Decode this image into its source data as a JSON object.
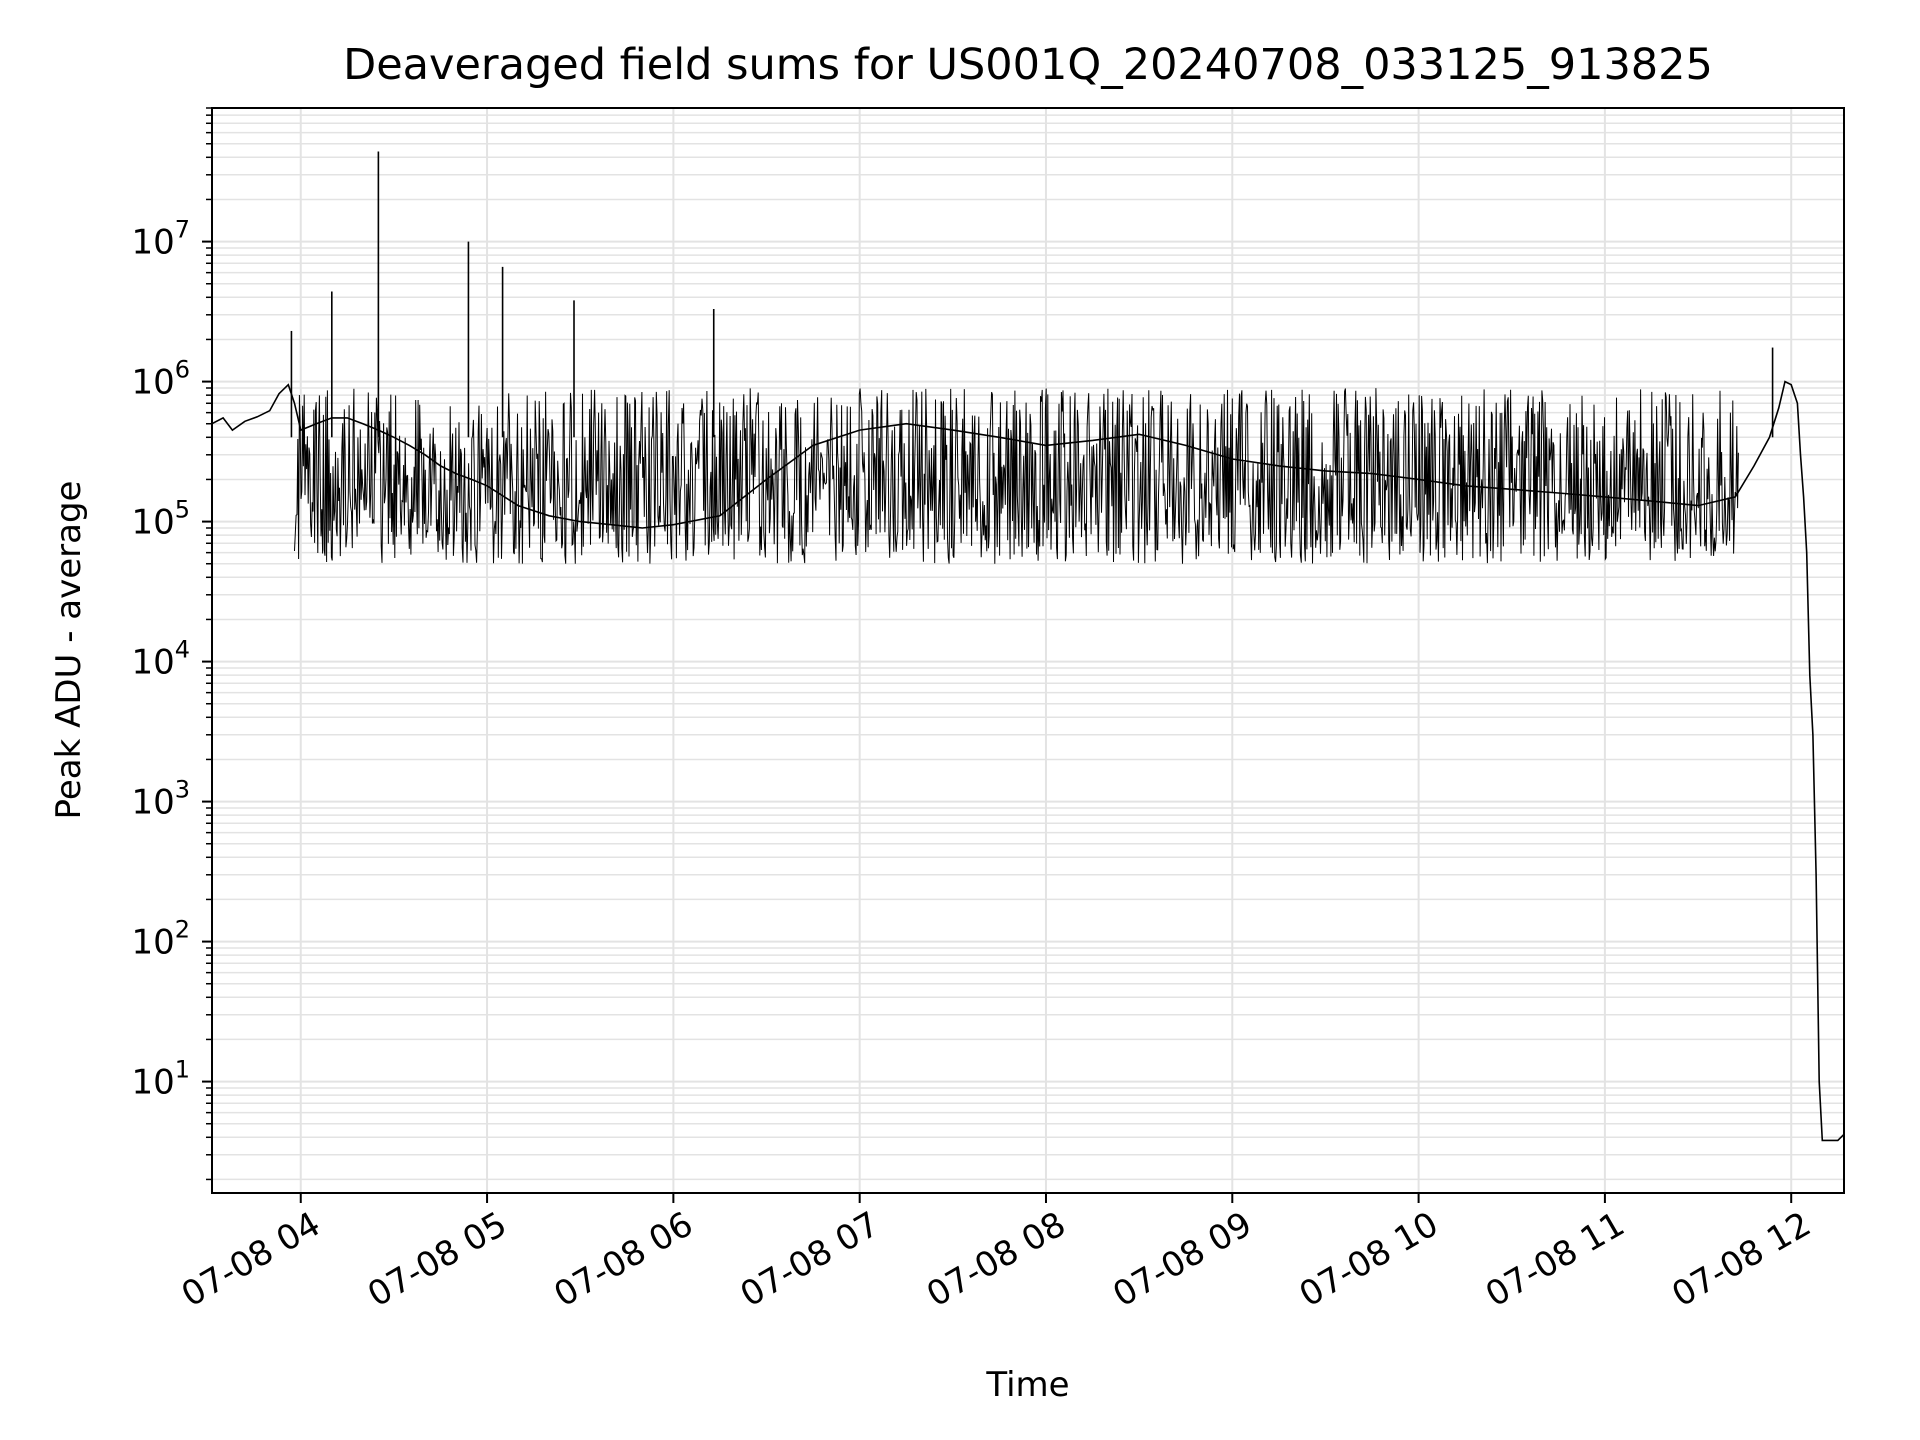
{
  "chart_data": {
    "type": "line",
    "title": "Deaveraged field sums for US001Q_20240708_033125_913825",
    "xlabel": "Time",
    "ylabel": "Peak ADU - average",
    "y_scale": "log",
    "ylim": [
      1.6,
      90000000
    ],
    "xlim": [
      "2024-07-08 03:31:25",
      "2024-07-08 12:17:00"
    ],
    "grid": true,
    "line_color": "#000000",
    "grid_color": "#e3e3e3",
    "x_ticks": [
      {
        "value": "2024-07-08 04:00",
        "label": "07-08 04"
      },
      {
        "value": "2024-07-08 05:00",
        "label": "07-08 05"
      },
      {
        "value": "2024-07-08 06:00",
        "label": "07-08 06"
      },
      {
        "value": "2024-07-08 07:00",
        "label": "07-08 07"
      },
      {
        "value": "2024-07-08 08:00",
        "label": "07-08 08"
      },
      {
        "value": "2024-07-08 09:00",
        "label": "07-08 09"
      },
      {
        "value": "2024-07-08 10:00",
        "label": "07-08 10"
      },
      {
        "value": "2024-07-08 11:00",
        "label": "07-08 11"
      },
      {
        "value": "2024-07-08 12:00",
        "label": "07-08 12"
      }
    ],
    "y_ticks": [
      {
        "value": 10,
        "base": "10",
        "exp": "1"
      },
      {
        "value": 100,
        "base": "10",
        "exp": "2"
      },
      {
        "value": 1000,
        "base": "10",
        "exp": "3"
      },
      {
        "value": 10000,
        "base": "10",
        "exp": "4"
      },
      {
        "value": 100000,
        "base": "10",
        "exp": "5"
      },
      {
        "value": 1000000,
        "base": "10",
        "exp": "6"
      },
      {
        "value": 10000000,
        "base": "10",
        "exp": "7"
      }
    ],
    "series": [
      {
        "x": [
          "2024-07-08 03:31:25",
          "2024-07-08 03:35",
          "2024-07-08 03:38",
          "2024-07-08 03:42",
          "2024-07-08 03:46",
          "2024-07-08 03:50",
          "2024-07-08 03:53",
          "2024-07-08 03:56",
          "2024-07-08 03:58",
          "2024-07-08 04:00",
          "2024-07-08 04:05",
          "2024-07-08 04:10",
          "2024-07-08 04:15",
          "2024-07-08 04:20",
          "2024-07-08 04:25",
          "2024-07-08 04:30",
          "2024-07-08 04:35",
          "2024-07-08 04:40",
          "2024-07-08 04:45",
          "2024-07-08 04:50",
          "2024-07-08 04:55",
          "2024-07-08 05:00",
          "2024-07-08 05:10",
          "2024-07-08 05:20",
          "2024-07-08 05:30",
          "2024-07-08 05:40",
          "2024-07-08 05:50",
          "2024-07-08 06:00",
          "2024-07-08 06:15",
          "2024-07-08 06:30",
          "2024-07-08 06:45",
          "2024-07-08 07:00",
          "2024-07-08 07:15",
          "2024-07-08 07:30",
          "2024-07-08 07:45",
          "2024-07-08 08:00",
          "2024-07-08 08:15",
          "2024-07-08 08:30",
          "2024-07-08 08:45",
          "2024-07-08 09:00",
          "2024-07-08 09:15",
          "2024-07-08 09:30",
          "2024-07-08 09:45",
          "2024-07-08 10:00",
          "2024-07-08 10:15",
          "2024-07-08 10:30",
          "2024-07-08 10:45",
          "2024-07-08 11:00",
          "2024-07-08 11:15",
          "2024-07-08 11:30",
          "2024-07-08 11:42",
          "2024-07-08 11:48",
          "2024-07-08 11:53",
          "2024-07-08 11:56",
          "2024-07-08 11:58",
          "2024-07-08 12:00",
          "2024-07-08 12:02",
          "2024-07-08 12:03",
          "2024-07-08 12:04",
          "2024-07-08 12:05",
          "2024-07-08 12:06",
          "2024-07-08 12:07",
          "2024-07-08 12:08",
          "2024-07-08 12:09",
          "2024-07-08 12:10",
          "2024-07-08 12:12",
          "2024-07-08 12:15",
          "2024-07-08 12:17"
        ],
        "values": [
          500000,
          550000,
          450000,
          520000,
          560000,
          620000,
          820000,
          950000,
          700000,
          450000,
          500000,
          550000,
          550000,
          500000,
          450000,
          400000,
          350000,
          300000,
          250000,
          220000,
          200000,
          180000,
          130000,
          110000,
          100000,
          95000,
          90000,
          95000,
          110000,
          200000,
          350000,
          450000,
          500000,
          450000,
          400000,
          350000,
          380000,
          420000,
          350000,
          280000,
          250000,
          230000,
          220000,
          200000,
          180000,
          170000,
          160000,
          150000,
          140000,
          130000,
          150000,
          250000,
          400000,
          650000,
          1000000,
          950000,
          700000,
          300000,
          150000,
          60000,
          8000,
          3000,
          300,
          10,
          3.8,
          3.8,
          3.8,
          4.2
        ]
      }
    ],
    "spikes": [
      {
        "x": "2024-07-08 03:57",
        "value": 2300000
      },
      {
        "x": "2024-07-08 04:10",
        "value": 4400000
      },
      {
        "x": "2024-07-08 04:25",
        "value": 44000000
      },
      {
        "x": "2024-07-08 04:54",
        "value": 10000000
      },
      {
        "x": "2024-07-08 05:05",
        "value": 6600000
      },
      {
        "x": "2024-07-08 05:28",
        "value": 3800000
      },
      {
        "x": "2024-07-08 06:13",
        "value": 3300000
      },
      {
        "x": "2024-07-08 11:54",
        "value": 1750000
      }
    ],
    "noise_band": {
      "x_from": "2024-07-08 03:58",
      "x_to": "2024-07-08 11:43",
      "upper_envelope": 900000,
      "lower_envelope": 50000
    }
  }
}
